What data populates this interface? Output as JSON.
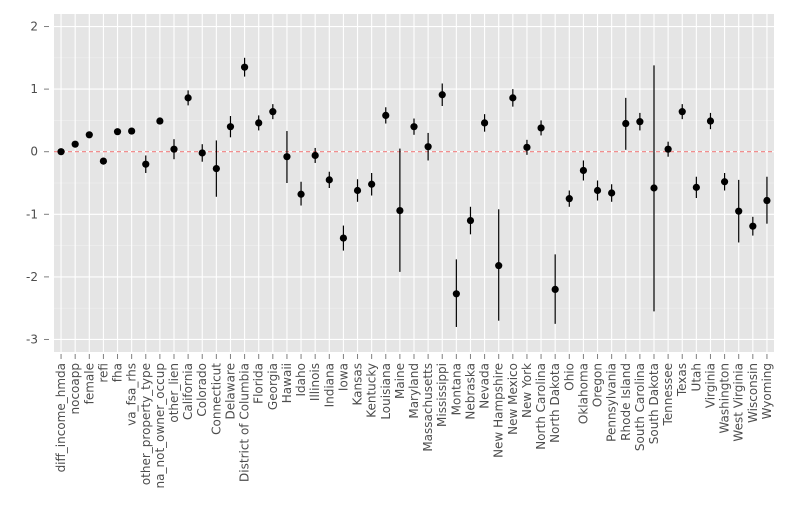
{
  "chart_data": {
    "type": "scatter",
    "subtype": "point-estimate with error bars",
    "title": "",
    "xlabel": "",
    "ylabel": "",
    "ylim": [
      -3.2,
      2.2
    ],
    "yticks": [
      -3,
      -2,
      -1,
      0,
      1,
      2
    ],
    "grid": true,
    "reference_line": {
      "y": 0,
      "color": "#f08080",
      "style": "dashed"
    },
    "colors": {
      "panel": "#e5e5e5",
      "grid": "#ffffff",
      "point": "#000000"
    },
    "categories": [
      "diff_income_hmda",
      "nocoapp",
      "female",
      "refi",
      "fha",
      "va_fsa_rhs",
      "other_property_type",
      "na_not_owner_occup",
      "other_lien",
      "California",
      "Colorado",
      "Connecticut",
      "Delaware",
      "District of Columbia",
      "Florida",
      "Georgia",
      "Hawaii",
      "Idaho",
      "Illinois",
      "Indiana",
      "Iowa",
      "Kansas",
      "Kentucky",
      "Louisiana",
      "Maine",
      "Maryland",
      "Massachusetts",
      "Mississippi",
      "Montana",
      "Nebraska",
      "Nevada",
      "New Hampshire",
      "New Mexico",
      "New York",
      "North Carolina",
      "North Dakota",
      "Ohio",
      "Oklahoma",
      "Oregon",
      "Pennsylvania",
      "Rhode Island",
      "South Carolina",
      "South Dakota",
      "Tennessee",
      "Texas",
      "Utah",
      "Virginia",
      "Washington",
      "West Virginia",
      "Wisconsin",
      "Wyoming"
    ],
    "values": [
      0.0,
      0.12,
      0.27,
      -0.15,
      0.32,
      0.33,
      -0.2,
      0.49,
      0.04,
      0.86,
      -0.02,
      -0.27,
      0.4,
      1.35,
      0.46,
      0.64,
      -0.08,
      -0.68,
      -0.06,
      -0.45,
      -1.38,
      -0.62,
      -0.52,
      0.58,
      -0.94,
      0.4,
      0.08,
      0.91,
      -2.27,
      -1.1,
      0.46,
      -1.82,
      0.86,
      0.07,
      0.38,
      -2.2,
      -0.75,
      -0.3,
      -0.62,
      -0.66,
      0.45,
      0.48,
      -0.58,
      0.04,
      0.64,
      -0.57,
      0.49,
      -0.48,
      -0.95,
      -1.19,
      -0.78
    ],
    "lower": [
      0.0,
      0.12,
      0.27,
      -0.15,
      0.32,
      0.33,
      -0.34,
      0.49,
      -0.12,
      0.74,
      -0.16,
      -0.72,
      0.23,
      1.2,
      0.34,
      0.52,
      -0.5,
      -0.86,
      -0.18,
      -0.58,
      -1.58,
      -0.8,
      -0.7,
      0.45,
      -1.92,
      0.27,
      -0.14,
      0.73,
      -2.8,
      -1.32,
      0.32,
      -2.7,
      0.72,
      -0.05,
      0.26,
      -2.75,
      -0.88,
      -0.46,
      -0.78,
      -0.8,
      0.03,
      0.34,
      -2.55,
      -0.08,
      0.52,
      -0.74,
      0.36,
      -0.62,
      -1.45,
      -1.34,
      -1.15
    ],
    "upper": [
      0.0,
      0.12,
      0.27,
      -0.15,
      0.32,
      0.33,
      -0.06,
      0.49,
      0.2,
      0.98,
      0.12,
      0.18,
      0.57,
      1.5,
      0.58,
      0.76,
      0.33,
      -0.48,
      0.06,
      -0.32,
      -1.18,
      -0.44,
      -0.34,
      0.71,
      0.05,
      0.53,
      0.3,
      1.09,
      -1.72,
      -0.88,
      0.6,
      -0.92,
      1.0,
      0.19,
      0.5,
      -1.64,
      -0.62,
      -0.14,
      -0.46,
      -0.52,
      0.86,
      0.62,
      1.38,
      0.16,
      0.76,
      -0.4,
      0.62,
      -0.34,
      -0.45,
      -1.04,
      -0.4
    ]
  }
}
